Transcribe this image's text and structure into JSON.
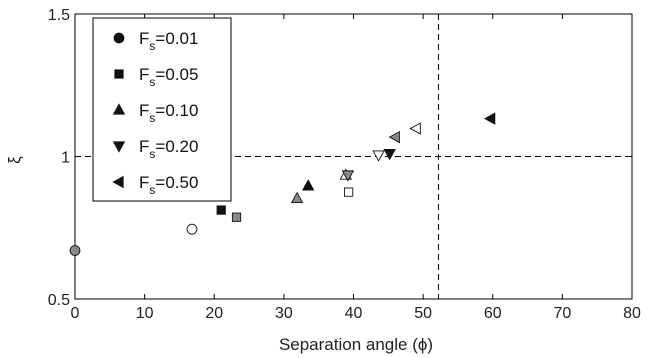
{
  "chart_data": {
    "type": "scatter",
    "title": "",
    "xlabel": "Separation angle (ϕ)",
    "ylabel": "ξ",
    "xlim": [
      0,
      80
    ],
    "ylim": [
      0.5,
      1.5
    ],
    "xticks": [
      "0",
      "10",
      "20",
      "30",
      "40",
      "50",
      "60",
      "70",
      "80"
    ],
    "yticks": [
      "0.5",
      "1",
      "1.5"
    ],
    "grid": false,
    "legend_position": "top-left",
    "reference_lines": {
      "x": 52.2,
      "y": 1.0
    },
    "series": [
      {
        "name_main": "F",
        "name_sub": "s",
        "name_suffix": "=0.01",
        "marker": "circle",
        "points": [
          {
            "x": 0,
            "y": 0.67,
            "fill": "#888888"
          },
          {
            "x": 16.8,
            "y": 0.745,
            "fill": "#ffffff"
          }
        ]
      },
      {
        "name_main": "F",
        "name_sub": "s",
        "name_suffix": "=0.05",
        "marker": "square",
        "points": [
          {
            "x": 21.0,
            "y": 0.812,
            "fill": "#111111"
          },
          {
            "x": 23.2,
            "y": 0.787,
            "fill": "#888888"
          },
          {
            "x": 39.3,
            "y": 0.875,
            "fill": "#ffffff"
          }
        ]
      },
      {
        "name_main": "F",
        "name_sub": "s",
        "name_suffix": "=0.10",
        "marker": "triangle-up",
        "points": [
          {
            "x": 33.5,
            "y": 0.897,
            "fill": "#111111"
          },
          {
            "x": 31.9,
            "y": 0.853,
            "fill": "#888888"
          },
          {
            "x": 38.9,
            "y": 0.935,
            "fill": "#ffffff"
          }
        ]
      },
      {
        "name_main": "F",
        "name_sub": "s",
        "name_suffix": "=0.20",
        "marker": "triangle-down",
        "points": [
          {
            "x": 45.2,
            "y": 1.01,
            "fill": "#111111"
          },
          {
            "x": 39.2,
            "y": 0.935,
            "fill": "#888888"
          },
          {
            "x": 43.6,
            "y": 1.005,
            "fill": "#ffffff"
          }
        ]
      },
      {
        "name_main": "F",
        "name_sub": "s",
        "name_suffix": "=0.50",
        "marker": "triangle-left",
        "points": [
          {
            "x": 59.7,
            "y": 1.133,
            "fill": "#111111"
          },
          {
            "x": 46.0,
            "y": 1.068,
            "fill": "#888888"
          },
          {
            "x": 49.0,
            "y": 1.098,
            "fill": "#ffffff"
          }
        ]
      }
    ]
  }
}
